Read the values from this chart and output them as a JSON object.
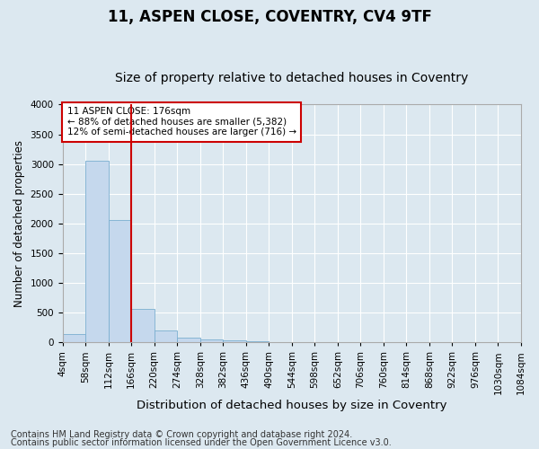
{
  "title": "11, ASPEN CLOSE, COVENTRY, CV4 9TF",
  "subtitle": "Size of property relative to detached houses in Coventry",
  "xlabel": "Distribution of detached houses by size in Coventry",
  "ylabel": "Number of detached properties",
  "bin_labels": [
    "4sqm",
    "58sqm",
    "112sqm",
    "166sqm",
    "220sqm",
    "274sqm",
    "328sqm",
    "382sqm",
    "436sqm",
    "490sqm",
    "544sqm",
    "598sqm",
    "652sqm",
    "706sqm",
    "760sqm",
    "814sqm",
    "868sqm",
    "922sqm",
    "976sqm",
    "1030sqm",
    "1084sqm"
  ],
  "bar_heights": [
    140,
    3060,
    2060,
    560,
    205,
    80,
    55,
    40,
    20,
    0,
    0,
    0,
    0,
    0,
    0,
    0,
    0,
    0,
    0,
    0
  ],
  "bar_color": "#c5d8ed",
  "bar_edge_color": "#7aaed0",
  "vline_x": 3.0,
  "vline_color": "#cc0000",
  "annotation_text": "11 ASPEN CLOSE: 176sqm\n← 88% of detached houses are smaller (5,382)\n12% of semi-detached houses are larger (716) →",
  "annotation_box_color": "#ffffff",
  "annotation_box_edge": "#cc0000",
  "ylim": [
    0,
    4000
  ],
  "yticks": [
    0,
    500,
    1000,
    1500,
    2000,
    2500,
    3000,
    3500,
    4000
  ],
  "background_color": "#dce8f0",
  "plot_bg_color": "#dce8f0",
  "footer_line1": "Contains HM Land Registry data © Crown copyright and database right 2024.",
  "footer_line2": "Contains public sector information licensed under the Open Government Licence v3.0.",
  "title_fontsize": 12,
  "subtitle_fontsize": 10,
  "xlabel_fontsize": 9.5,
  "ylabel_fontsize": 8.5,
  "tick_fontsize": 7.5,
  "footer_fontsize": 7,
  "annot_fontsize": 7.5
}
